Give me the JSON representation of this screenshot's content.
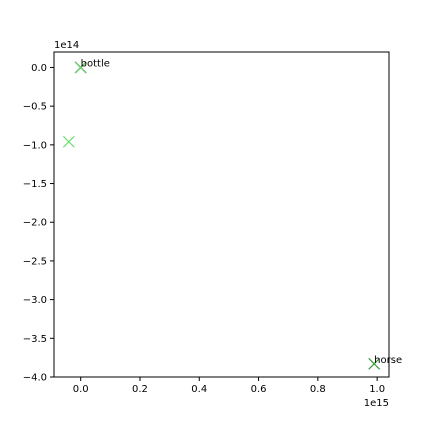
{
  "chart_data": {
    "type": "scatter",
    "title": "",
    "xlabel": "",
    "ylabel": "",
    "x_offset_label": "1e15",
    "y_offset_label": "1e14",
    "xlim": [
      -0.09,
      1.04
    ],
    "ylim": [
      -4.0,
      0.2
    ],
    "x_ticks": [
      0.0,
      0.2,
      0.4,
      0.6,
      0.8,
      1.0
    ],
    "x_tick_labels": [
      "0.0",
      "0.2",
      "0.4",
      "0.6",
      "0.8",
      "1.0"
    ],
    "y_ticks": [
      0.0,
      -0.5,
      -1.0,
      -1.5,
      -2.0,
      -2.5,
      -3.0,
      -3.5,
      -4.0
    ],
    "y_tick_labels": [
      "0.0",
      "−0.5",
      "−1.0",
      "−1.5",
      "−2.0",
      "−2.5",
      "−3.0",
      "−3.5",
      "−4.0"
    ],
    "grid": false,
    "points": [
      {
        "x": 0.0,
        "y": 0.0,
        "label": "bottle",
        "marker": "x",
        "color": "#1a6b2a"
      },
      {
        "x": 0.0,
        "y": 0.0,
        "label": "",
        "marker": "x",
        "color": "#3f9a3f"
      },
      {
        "x": 0.0,
        "y": 0.0,
        "label": "",
        "marker": "x",
        "color": "#6fd26f"
      },
      {
        "x": -0.04,
        "y": -0.96,
        "label": "",
        "marker": "x",
        "color": "#66dd66"
      },
      {
        "x": 0.99,
        "y": -3.83,
        "label": "horse",
        "marker": "x",
        "color": "#3c9a3c"
      }
    ]
  }
}
